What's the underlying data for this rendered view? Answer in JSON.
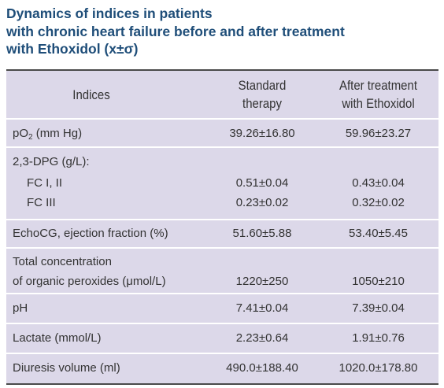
{
  "title": {
    "line1": "Dynamics of indices in patients",
    "line2": "with chronic heart failure before and after treatment",
    "line3": "with Ethoxidol (x±σ)"
  },
  "headers": {
    "indices": "Indices",
    "standard_line1": "Standard",
    "standard_line2": "therapy",
    "after_line1": "After treatment",
    "after_line2": "with Ethoxidol"
  },
  "rows": {
    "po2": {
      "label_prefix": "pO",
      "label_sub": "2",
      "label_suffix": " (mm Hg)",
      "standard": "39.26±16.80",
      "after": "59.96±23.27"
    },
    "dpg": {
      "label": "2,3-DPG (g/L):",
      "fc12": {
        "label": "FC I, II",
        "standard": "0.51±0.04",
        "after": "0.43±0.04"
      },
      "fc3": {
        "label": "FC III",
        "standard": "0.23±0.02",
        "after": "0.32±0.02"
      }
    },
    "echo": {
      "label": "EchoCG, ejection fraction (%)",
      "standard": "51.60±5.88",
      "after": "53.40±5.45"
    },
    "peroxides": {
      "label_line1": "Total concentration",
      "label_line2": "of organic peroxides (μmol/L)",
      "standard": "1220±250",
      "after": "1050±210"
    },
    "ph": {
      "label": "pH",
      "standard": "7.41±0.04",
      "after": "7.39±0.04"
    },
    "lactate": {
      "label": "Lactate (mmol/L)",
      "standard": "2.23±0.64",
      "after": "1.91±0.76"
    },
    "diuresis": {
      "label": "Diuresis volume (ml)",
      "standard": "490.0±188.40",
      "after": "1020.0±178.80"
    }
  }
}
